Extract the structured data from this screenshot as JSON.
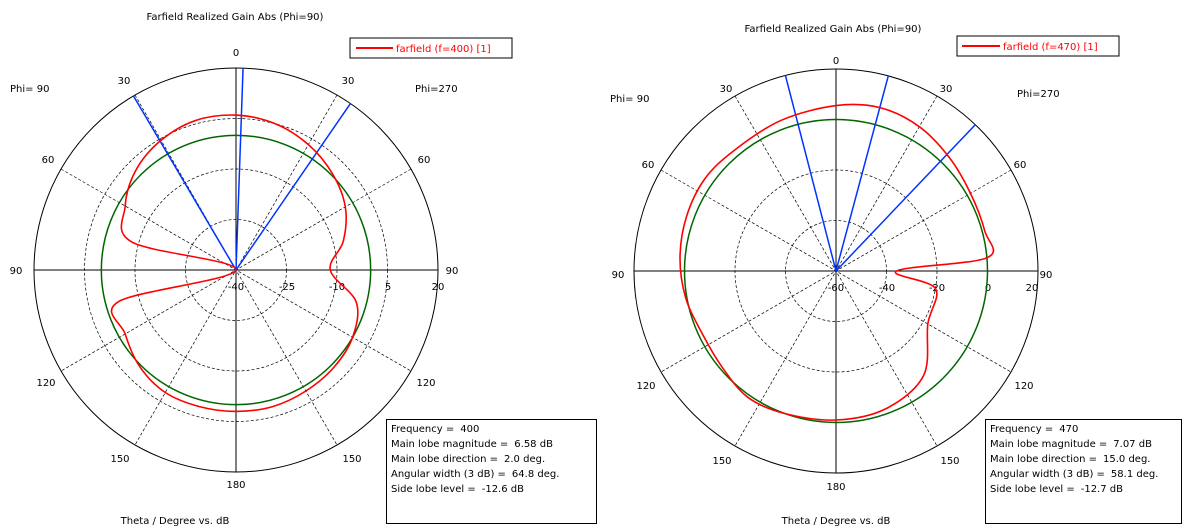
{
  "chart_data": [
    {
      "type": "polar",
      "title": "Farfield Realized Gain Abs (Phi=90)",
      "xlabel": "Theta / Degree vs. dB",
      "left_label": "Phi= 90",
      "right_label": "Phi=270",
      "legend": {
        "label": "farfield (f=400) [1]",
        "placement": "top-right"
      },
      "radial_ticks": [
        "-40",
        "-25",
        "-10",
        "5",
        "20"
      ],
      "radial_range": [
        -40,
        20
      ],
      "angle_ticks": [
        "0",
        "30",
        "30",
        "60",
        "60",
        "90",
        "90",
        "120",
        "120",
        "150",
        "150",
        "180"
      ],
      "grid": true,
      "colors": {
        "curve": "#ff0000",
        "reference": "#006600",
        "lobe": "#0033ff"
      },
      "reference_level_db": 0,
      "main_lobe_direction_deg": 2.0,
      "beam_edges_deg": [
        -30.5,
        34.5
      ],
      "series": [
        {
          "theta_deg": [
            0,
            15,
            30,
            45,
            60,
            75,
            90,
            105,
            120,
            135,
            150,
            165,
            180,
            195,
            210,
            225,
            240,
            255,
            270,
            285,
            300,
            315,
            330,
            345,
            360
          ],
          "gain_db": [
            6.0,
            5.0,
            3.0,
            0.5,
            -2.5,
            -7.0,
            -12.0,
            -3.0,
            0.0,
            1.0,
            1.5,
            2.0,
            2.0,
            2.0,
            2.0,
            0.5,
            -2.0,
            -4.0,
            -40.0,
            -8.0,
            -2.0,
            2.0,
            4.5,
            6.0,
            6.0
          ]
        }
      ],
      "info": {
        "frequency": {
          "label": "Frequency =",
          "value": "400"
        },
        "magnitude": {
          "label": "Main lobe magnitude =",
          "value": "6.58 dB"
        },
        "direction": {
          "label": "Main lobe direction =",
          "value": "2.0 deg."
        },
        "width": {
          "label": "Angular width (3 dB) =",
          "value": "64.8 deg."
        },
        "sidelobe": {
          "label": "Side lobe level =",
          "value": "-12.6 dB"
        }
      }
    },
    {
      "type": "polar",
      "title": "Farfield Realized Gain Abs (Phi=90)",
      "xlabel": "Theta / Degree vs. dB",
      "left_label": "Phi= 90",
      "right_label": "Phi=270",
      "legend": {
        "label": "farfield (f=470) [1]",
        "placement": "top-right"
      },
      "radial_ticks": [
        "-60",
        "-40",
        "-20",
        "0",
        "20"
      ],
      "radial_range": [
        -60,
        20
      ],
      "angle_ticks": [
        "0",
        "30",
        "30",
        "60",
        "60",
        "90",
        "90",
        "120",
        "120",
        "150",
        "150",
        "180"
      ],
      "grid": true,
      "colors": {
        "curve": "#ff0000",
        "reference": "#006600",
        "lobe": "#0033ff"
      },
      "reference_level_db": 0,
      "main_lobe_direction_deg": 15.0,
      "beam_edges_deg": [
        -14.5,
        43.6
      ],
      "series": [
        {
          "theta_deg": [
            0,
            15,
            30,
            45,
            60,
            75,
            85,
            90,
            100,
            120,
            140,
            160,
            180,
            200,
            215,
            230,
            245,
            260,
            275,
            290,
            305,
            320,
            340,
            360
          ],
          "gain_db": [
            5.5,
            7.0,
            6.0,
            3.5,
            1.5,
            1.0,
            0.0,
            -36.0,
            -20.0,
            -18.0,
            -6.0,
            -2.0,
            -1.0,
            0.0,
            1.0,
            -1.0,
            -1.5,
            0.5,
            2.0,
            3.0,
            3.5,
            2.5,
            3.5,
            5.5
          ]
        }
      ],
      "info": {
        "frequency": {
          "label": "Frequency =",
          "value": "470"
        },
        "magnitude": {
          "label": "Main lobe magnitude =",
          "value": "7.07 dB"
        },
        "direction": {
          "label": "Main lobe direction =",
          "value": "15.0 deg."
        },
        "width": {
          "label": "Angular width (3 dB) =",
          "value": "58.1 deg."
        },
        "sidelobe": {
          "label": "Side lobe level =",
          "value": "-12.7 dB"
        }
      }
    }
  ]
}
